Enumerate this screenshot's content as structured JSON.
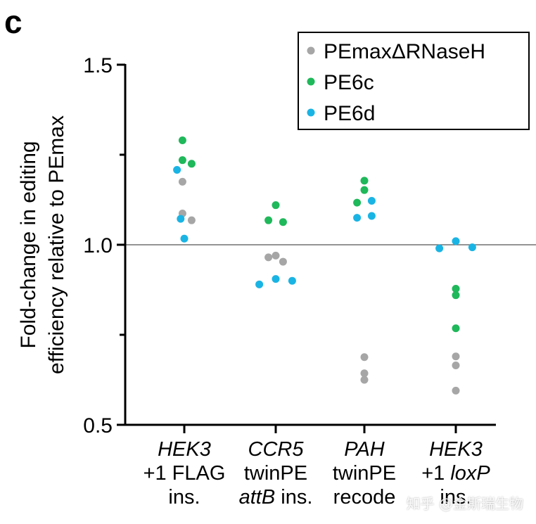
{
  "panel_label": "c",
  "watermark": "知乎 @金斯瑞生物",
  "colors": {
    "PEmaxΔRNaseH": "#a6a6a6",
    "PE6c": "#1fb85a",
    "PE6d": "#1ab4e4",
    "axis": "#000000",
    "refline": "#555555"
  },
  "chart_data": {
    "type": "scatter",
    "title": "",
    "ylabel": [
      "Fold-change in editing",
      "efficiency relative to PEmax"
    ],
    "ylim": [
      0.5,
      1.5
    ],
    "yticks": [
      0.5,
      1.0,
      1.5
    ],
    "ytick_labels": [
      "0.5",
      "1.0",
      "1.5"
    ],
    "reference_line": 1.0,
    "legend_position": "top-right",
    "categories": [
      {
        "lines": [
          [
            {
              "t": "HEK3",
              "i": true
            }
          ],
          [
            {
              "t": "+1 FLAG",
              "i": false
            }
          ],
          [
            {
              "t": "ins.",
              "i": false
            }
          ]
        ]
      },
      {
        "lines": [
          [
            {
              "t": "CCR5",
              "i": true
            }
          ],
          [
            {
              "t": "twinPE",
              "i": false
            }
          ],
          [
            {
              "t": "attB",
              "i": true
            },
            {
              "t": " ins.",
              "i": false
            }
          ]
        ]
      },
      {
        "lines": [
          [
            {
              "t": "PAH",
              "i": true
            }
          ],
          [
            {
              "t": "twinPE",
              "i": false
            }
          ],
          [
            {
              "t": "recode",
              "i": false
            }
          ]
        ]
      },
      {
        "lines": [
          [
            {
              "t": "HEK3",
              "i": true
            }
          ],
          [
            {
              "t": "+1 ",
              "i": false
            },
            {
              "t": "loxP",
              "i": true
            }
          ],
          [
            {
              "t": "ins.",
              "i": false
            }
          ]
        ]
      }
    ],
    "series": [
      {
        "name": "PEmaxΔRNaseH",
        "points": [
          [
            [
              -0.02,
              1.175
            ],
            [
              -0.02,
              1.087
            ],
            [
              0.08,
              1.068
            ]
          ],
          [
            [
              -0.08,
              0.965
            ],
            [
              0.0,
              0.97
            ],
            [
              0.08,
              0.953
            ]
          ],
          [
            [
              0.0,
              0.688
            ],
            [
              0.0,
              0.643
            ],
            [
              0.0,
              0.625
            ]
          ],
          [
            [
              0.0,
              0.69
            ],
            [
              0.0,
              0.665
            ],
            [
              0.0,
              0.595
            ]
          ]
        ]
      },
      {
        "name": "PE6c",
        "points": [
          [
            [
              -0.02,
              1.29
            ],
            [
              -0.02,
              1.235
            ],
            [
              0.08,
              1.225
            ]
          ],
          [
            [
              -0.08,
              1.068
            ],
            [
              0.0,
              1.11
            ],
            [
              0.08,
              1.063
            ]
          ],
          [
            [
              -0.08,
              1.117
            ],
            [
              0.0,
              1.152
            ],
            [
              0.0,
              1.178
            ]
          ],
          [
            [
              0.0,
              0.878
            ],
            [
              0.0,
              0.86
            ],
            [
              0.0,
              0.768
            ]
          ]
        ]
      },
      {
        "name": "PE6d",
        "points": [
          [
            [
              -0.08,
              1.208
            ],
            [
              -0.04,
              1.072
            ],
            [
              0.0,
              1.017
            ]
          ],
          [
            [
              -0.18,
              0.89
            ],
            [
              0.0,
              0.905
            ],
            [
              0.18,
              0.9
            ]
          ],
          [
            [
              -0.08,
              1.075
            ],
            [
              0.08,
              1.08
            ],
            [
              0.08,
              1.122
            ]
          ],
          [
            [
              -0.18,
              0.99
            ],
            [
              0.0,
              1.01
            ],
            [
              0.18,
              0.993
            ]
          ]
        ]
      }
    ]
  }
}
